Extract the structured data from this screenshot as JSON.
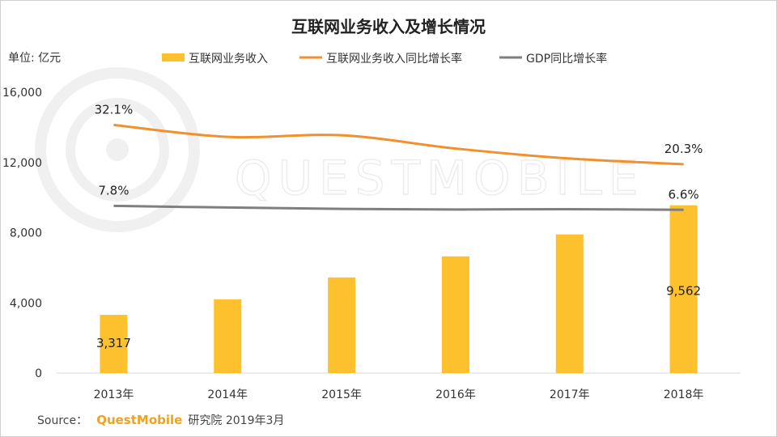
{
  "colors": {
    "bar": "#FDC12D",
    "growth_line": "#F2902E",
    "gdp_line": "#7F7F7F",
    "axis": "#d9d9d9",
    "brand": "#F0A21F"
  },
  "watermark": "QUESTMOBILE",
  "source": {
    "prefix": "Source：",
    "brand": "QuestMobile",
    "suffix": "研究院 2019年3月"
  },
  "chart_data": {
    "type": "bar",
    "title": "互联网业务收入及增长情况",
    "unit_label": "单位: 亿元",
    "categories": [
      "2013年",
      "2014年",
      "2015年",
      "2016年",
      "2017年",
      "2018年"
    ],
    "ylim": [
      0,
      16000
    ],
    "yticks": [
      "0",
      "4,000",
      "8,000",
      "12,000",
      "16,000"
    ],
    "grid": false,
    "legend_position": "top",
    "series": [
      {
        "name": "互联网业务收入",
        "type": "bar",
        "values": [
          3317,
          4200,
          5450,
          6650,
          7900,
          9562
        ],
        "labels": [
          "3,317",
          "",
          "",
          "",
          "",
          "9,562"
        ]
      },
      {
        "name": "互联网业务收入同比增长率",
        "type": "line",
        "values": [
          32.1,
          28.5,
          29.0,
          25.0,
          22.0,
          20.3
        ],
        "labels": [
          "32.1%",
          "",
          "",
          "",
          "",
          "20.3%"
        ]
      },
      {
        "name": "GDP同比增长率",
        "type": "line",
        "values": [
          7.8,
          7.3,
          6.9,
          6.7,
          6.8,
          6.6
        ],
        "labels": [
          "7.8%",
          "",
          "",
          "",
          "",
          "6.6%"
        ]
      }
    ]
  }
}
